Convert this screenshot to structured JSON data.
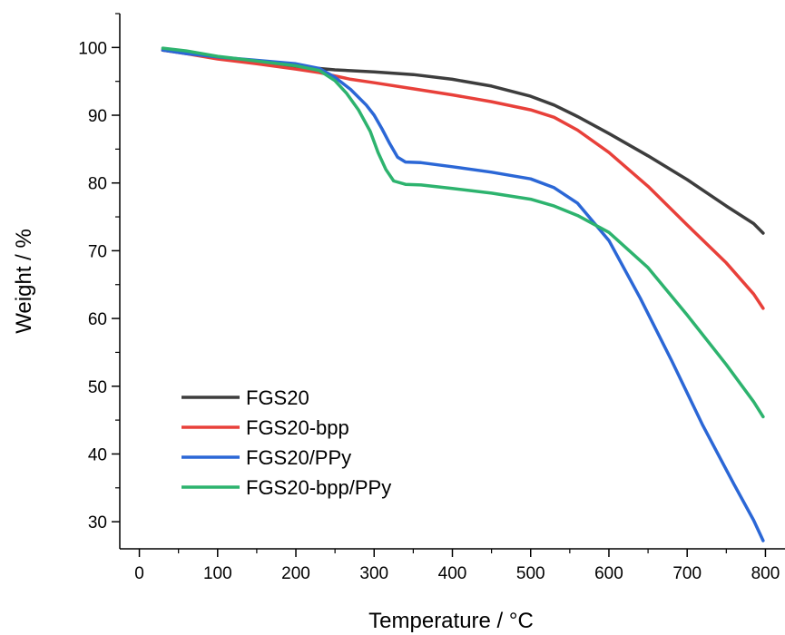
{
  "chart_data": {
    "type": "line",
    "title": "",
    "xlabel": "Temperature / °C",
    "ylabel": "Weight / %",
    "xlim": [
      -25,
      825
    ],
    "ylim": [
      26,
      105
    ],
    "xticks": [
      0,
      100,
      200,
      300,
      400,
      500,
      600,
      700,
      800
    ],
    "yticks": [
      30,
      40,
      50,
      60,
      70,
      80,
      90,
      100
    ],
    "grid": false,
    "legend_position": "bottom-left",
    "series": [
      {
        "name": "FGS20",
        "color": "#3d3d3d",
        "x": [
          30,
          60,
          100,
          150,
          200,
          230,
          250,
          300,
          350,
          400,
          450,
          500,
          530,
          560,
          600,
          650,
          700,
          750,
          785,
          797
        ],
        "y": [
          99.6,
          99.2,
          98.5,
          97.8,
          97.2,
          96.9,
          96.7,
          96.4,
          96.0,
          95.3,
          94.3,
          92.8,
          91.5,
          89.8,
          87.3,
          84.0,
          80.5,
          76.6,
          74.0,
          72.6
        ]
      },
      {
        "name": "FGS20-bpp",
        "color": "#e8403a",
        "x": [
          30,
          60,
          100,
          150,
          200,
          230,
          250,
          270,
          300,
          350,
          400,
          450,
          500,
          530,
          560,
          600,
          650,
          700,
          750,
          785,
          797
        ],
        "y": [
          99.6,
          99.1,
          98.3,
          97.6,
          96.8,
          96.3,
          95.8,
          95.3,
          94.8,
          93.9,
          93.0,
          92.0,
          90.8,
          89.7,
          87.8,
          84.5,
          79.5,
          73.8,
          68.2,
          63.6,
          61.5
        ]
      },
      {
        "name": "FGS20/PPy",
        "color": "#2b67d6",
        "x": [
          30,
          60,
          100,
          150,
          200,
          230,
          250,
          270,
          290,
          300,
          310,
          320,
          330,
          340,
          360,
          400,
          450,
          500,
          530,
          560,
          600,
          640,
          680,
          720,
          760,
          785,
          797
        ],
        "y": [
          99.6,
          99.1,
          98.6,
          98.1,
          97.6,
          96.9,
          95.6,
          93.8,
          91.5,
          90.0,
          88.0,
          85.8,
          83.8,
          83.1,
          83.0,
          82.4,
          81.6,
          80.6,
          79.3,
          77.0,
          71.5,
          63.0,
          53.8,
          44.2,
          35.5,
          30.2,
          27.2
        ]
      },
      {
        "name": "FGS20-bpp/PPy",
        "color": "#2db36e",
        "x": [
          30,
          60,
          100,
          150,
          200,
          230,
          250,
          265,
          280,
          295,
          305,
          315,
          325,
          340,
          360,
          400,
          450,
          500,
          530,
          560,
          600,
          650,
          700,
          750,
          785,
          797
        ],
        "y": [
          99.9,
          99.5,
          98.7,
          98.0,
          97.3,
          96.6,
          95.1,
          93.2,
          90.8,
          87.6,
          84.5,
          82.0,
          80.3,
          79.8,
          79.7,
          79.2,
          78.5,
          77.6,
          76.6,
          75.2,
          72.7,
          67.5,
          60.5,
          53.2,
          47.7,
          45.5
        ]
      }
    ]
  }
}
